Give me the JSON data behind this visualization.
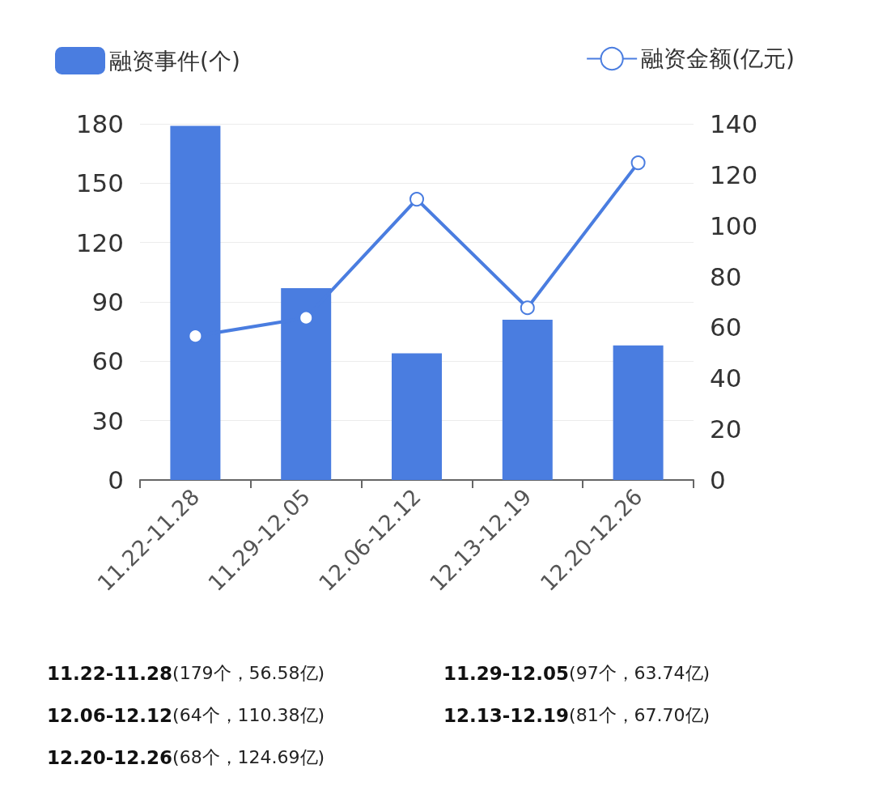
{
  "chart_data": {
    "type": "bar",
    "categories": [
      "11.22-11.28",
      "11.29-12.05",
      "12.06-12.12",
      "12.13-12.19",
      "12.20-12.26"
    ],
    "series": [
      {
        "name": "融资事件(个)",
        "color": "#4a7de0",
        "values": [
          179,
          97,
          64,
          81,
          68
        ]
      },
      {
        "name": "融资金额(亿元)",
        "type": "line",
        "axis": "y2",
        "color": "#4a7de0",
        "values": [
          56.58,
          63.74,
          110.38,
          67.7,
          124.69
        ]
      }
    ],
    "ylim": [
      0,
      180
    ],
    "yticks": [
      0,
      30,
      60,
      90,
      120,
      150,
      180
    ],
    "y2lim": [
      0,
      140
    ],
    "y2ticks": [
      0,
      20,
      40,
      60,
      80,
      100,
      120,
      140
    ],
    "grid": "y",
    "legend": "top",
    "marker": "circle",
    "annotations": [
      "11.22-11.28(179个，56.58亿)",
      "11.29-12.05(97个，63.74亿)",
      "12.06-12.12(64个，110.38亿)",
      "12.13-12.19(81个，67.70亿)",
      "12.20-12.26(68个，124.69亿)"
    ]
  }
}
